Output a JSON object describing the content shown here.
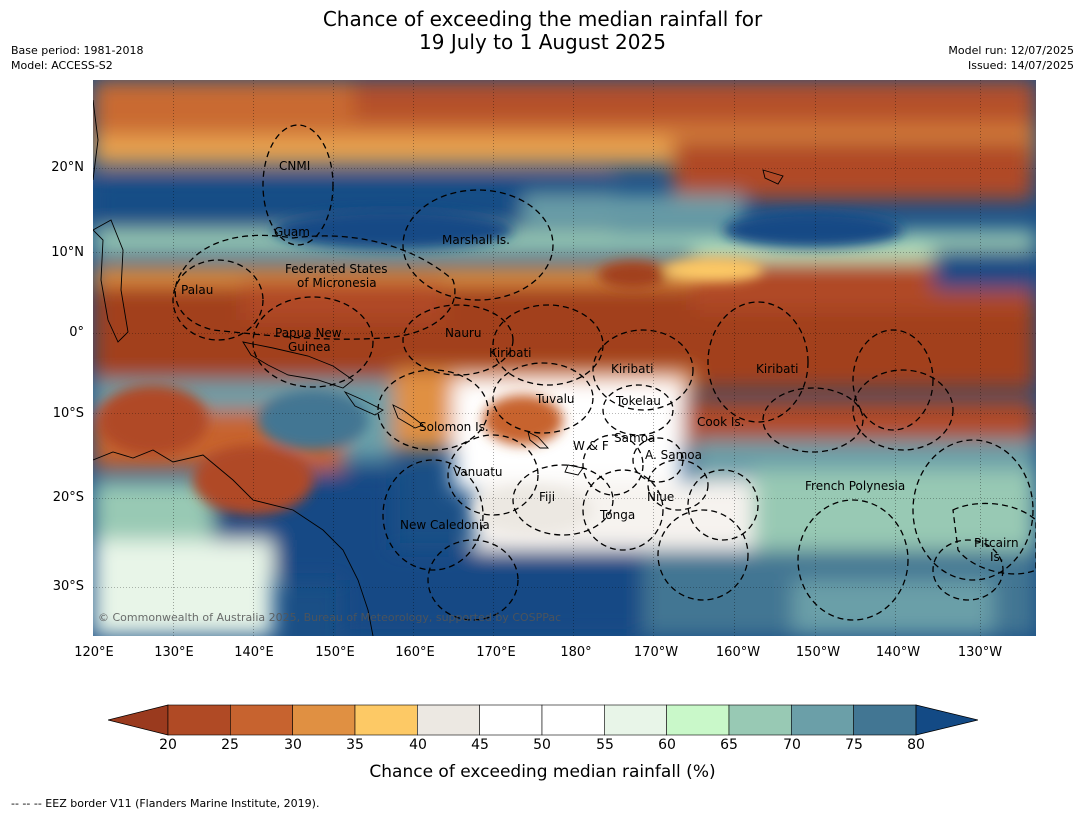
{
  "title": {
    "line1": "Chance of exceeding the median rainfall for",
    "line2": "19 July to 1 August 2025"
  },
  "meta_left": {
    "base_period": "Base period: 1981-2018",
    "model": "Model: ACCESS-S2"
  },
  "meta_right": {
    "model_run": "Model run: 12/07/2025",
    "issued": "Issued: 14/07/2025"
  },
  "map": {
    "latitude_ticks": [
      "20°N",
      "10°N",
      "0°",
      "10°S",
      "20°S",
      "30°S"
    ],
    "longitude_ticks": [
      "120°E",
      "130°E",
      "140°E",
      "150°E",
      "160°E",
      "170°E",
      "180°",
      "170°W",
      "160°W",
      "150°W",
      "140°W",
      "130°W"
    ],
    "region_labels": {
      "cnmi": "CNMI",
      "guam": "Guam",
      "marshall": "Marshall Is.",
      "fsm_line1": "Federated States",
      "fsm_line2": "of Micronesia",
      "palau": "Palau",
      "png_line1": "Papua New",
      "png_line2": "Guinea",
      "nauru": "Nauru",
      "kiribati_west": "Kiribati",
      "kiribati_central": "Kiribati",
      "kiribati_east": "Kiribati",
      "tuvalu": "Tuvalu",
      "tokelau": "Tokelau",
      "cook": "Cook Is.",
      "solomon": "Solomon Is.",
      "samoa": "Samoa",
      "wf": "W & F",
      "asamoa": "A. Samoa",
      "vanuatu": "Vanuatu",
      "fiji": "Fiji",
      "niue": "Niue",
      "tonga": "Tonga",
      "french_polynesia": "French Polynesia",
      "new_caledonia": "New Caledonia",
      "pitcairn_line1": "Pitcairn",
      "pitcairn_line2": "Is."
    },
    "copyright": "© Commonwealth of Australia 2025, Bureau of Meteorology, supported by COSPPac"
  },
  "colorbar": {
    "ticks": [
      "20",
      "25",
      "30",
      "35",
      "40",
      "45",
      "50",
      "55",
      "60",
      "65",
      "70",
      "75",
      "80"
    ],
    "colors": [
      "#9a3a1e",
      "#b04a25",
      "#c7632f",
      "#e09042",
      "#fdc965",
      "#ece8e2",
      "#ffffff",
      "#ffffff",
      "#e8f5e8",
      "#c9f8c9",
      "#98c9b4",
      "#6b9fa8",
      "#427693",
      "#134a85"
    ],
    "label": "Chance of exceeding median rainfall (%)"
  },
  "footer": "-- -- -- EEZ border V11 (Flanders Marine Institute, 2019)."
}
